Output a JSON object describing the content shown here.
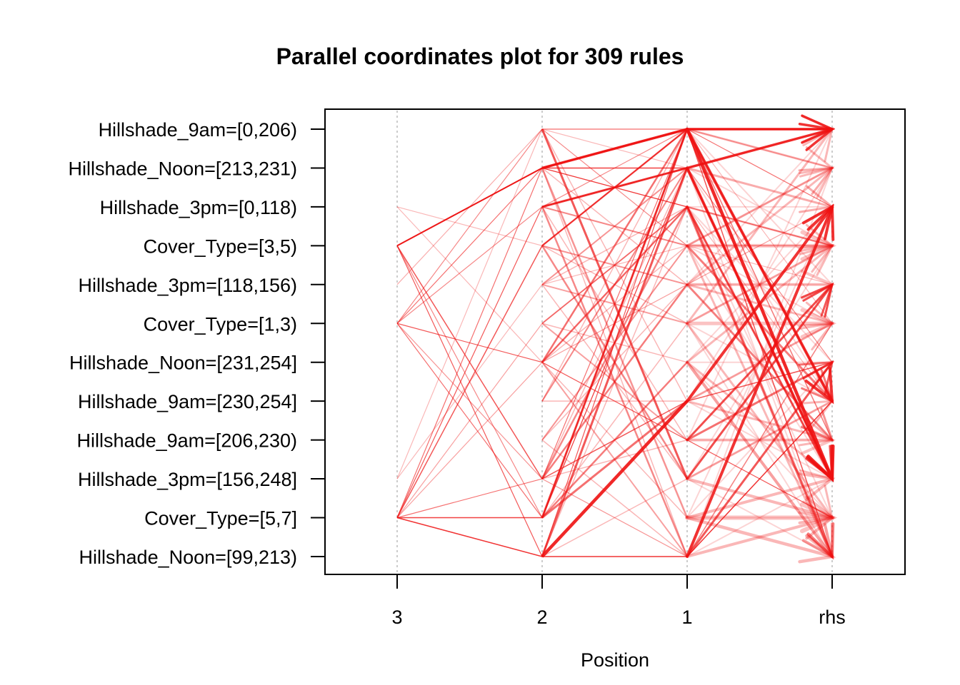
{
  "chart_data": {
    "type": "parallel-coordinates",
    "title": "Parallel coordinates plot for 309 rules",
    "xlabel": "Position",
    "x_ticks": [
      "3",
      "2",
      "1",
      "rhs"
    ],
    "y_items": [
      "Hillshade_9am=[0,206)",
      "Hillshade_Noon=[213,231)",
      "Hillshade_3pm=[0,118)",
      "Cover_Type=[3,5)",
      "Hillshade_3pm=[118,156)",
      "Cover_Type=[1,3)",
      "Hillshade_Noon=[231,254]",
      "Hillshade_9am=[230,254]",
      "Hillshade_9am=[206,230)",
      "Hillshade_3pm=[156,248]",
      "Cover_Type=[5,7]",
      "Hillshade_Noon=[99,213)"
    ],
    "rule_count": 309,
    "grid": "dotted vertical lines at each position",
    "colors": {
      "line": "#ee1111",
      "axis": "#000000",
      "grid": "#bbbbbb"
    },
    "rules": [
      {
        "path": [
          3,
          1,
          0,
          0
        ],
        "w": 2,
        "o": 0.9
      },
      {
        "path": [
          3,
          1,
          1,
          9
        ],
        "w": 1.5,
        "o": 0.8
      },
      {
        "path": [
          3,
          9,
          7,
          6
        ],
        "w": 1.5,
        "o": 0.7
      },
      {
        "path": [
          5,
          1,
          2,
          3
        ],
        "w": 1.2,
        "o": 0.6
      },
      {
        "path": [
          5,
          6,
          8,
          10
        ],
        "w": 1.2,
        "o": 0.7
      },
      {
        "path": [
          5,
          2,
          0,
          8
        ],
        "w": 1.2,
        "o": 0.5
      },
      {
        "path": [
          10,
          10,
          0,
          7
        ],
        "w": 1.5,
        "o": 0.8
      },
      {
        "path": [
          10,
          11,
          11,
          7
        ],
        "w": 1.5,
        "o": 0.85
      },
      {
        "path": [
          10,
          2,
          1,
          0
        ],
        "w": 1.2,
        "o": 0.7
      },
      {
        "path": [
          10,
          1,
          2,
          11
        ],
        "w": 1.2,
        "o": 0.6
      },
      {
        "path": [
          10,
          9,
          0,
          2
        ],
        "w": 1.2,
        "o": 0.6
      },
      {
        "path": [
          2,
          3,
          0,
          5
        ],
        "w": 1.2,
        "o": 0.3
      },
      {
        "path": [
          9,
          0,
          1,
          9
        ],
        "w": 1.2,
        "o": 0.3
      },
      {
        "path": [
          4,
          0,
          0,
          1
        ],
        "w": 1.2,
        "o": 0.35
      },
      {
        "path": [
          3,
          11,
          0,
          0
        ],
        "w": 1.2,
        "o": 0.7
      },
      {
        "path": [
          5,
          10,
          1,
          9
        ],
        "w": 1.2,
        "o": 0.6
      },
      {
        "path": [
          10,
          6,
          4,
          2
        ],
        "w": 1.2,
        "o": 0.4
      },
      {
        "path": [
          10,
          5,
          2,
          9
        ],
        "w": 1.2,
        "o": 0.4
      },
      {
        "path": [
          3,
          10,
          1,
          6
        ],
        "w": 1.2,
        "o": 0.5
      },
      {
        "path": [
          5,
          0,
          3,
          3
        ],
        "w": 1.2,
        "o": 0.5
      },
      {
        "path": [
          10,
          3,
          0,
          11
        ],
        "w": 1.5,
        "o": 0.7
      },
      {
        "path": [
          5,
          9,
          11,
          5
        ],
        "w": 1.2,
        "o": 0.45
      },
      {
        "path": [
          2,
          6,
          2,
          7
        ],
        "w": 1.2,
        "o": 0.3
      },
      {
        "path": [
          9,
          4,
          3,
          4
        ],
        "w": 1.2,
        "o": 0.3
      }
    ],
    "pairs": [
      {
        "from": 1,
        "to": 0,
        "w": 3.5,
        "o": 0.9
      },
      {
        "from": 2,
        "to": 1,
        "w": 3,
        "o": 0.8
      },
      {
        "from": 2,
        "to": 3,
        "w": 2,
        "o": 0.5
      },
      {
        "from": 3,
        "to": 0,
        "w": 2.5,
        "o": 0.6
      },
      {
        "from": 3,
        "to": 4,
        "w": 2,
        "o": 0.45
      },
      {
        "from": 4,
        "to": 1,
        "w": 2,
        "o": 0.45
      },
      {
        "from": 4,
        "to": 5,
        "w": 2,
        "o": 0.4
      },
      {
        "from": 5,
        "to": 2,
        "w": 2,
        "o": 0.45
      },
      {
        "from": 6,
        "to": 0,
        "w": 2.5,
        "o": 0.6
      },
      {
        "from": 6,
        "to": 2,
        "w": 2.5,
        "o": 0.55
      },
      {
        "from": 7,
        "to": 1,
        "w": 2,
        "o": 0.5
      },
      {
        "from": 8,
        "to": 3,
        "w": 2,
        "o": 0.45
      },
      {
        "from": 9,
        "to": 2,
        "w": 2.5,
        "o": 0.5
      },
      {
        "from": 9,
        "to": 4,
        "w": 2.5,
        "o": 0.55
      },
      {
        "from": 10,
        "to": 0,
        "w": 3,
        "o": 0.7
      },
      {
        "from": 10,
        "to": 7,
        "w": 3,
        "o": 0.6
      },
      {
        "from": 11,
        "to": 7,
        "w": 4.5,
        "o": 0.9
      },
      {
        "from": 11,
        "to": 1,
        "w": 3,
        "o": 0.7
      },
      {
        "from": 10,
        "to": 6,
        "w": 2.5,
        "o": 0.55
      },
      {
        "from": 5,
        "to": 8,
        "w": 2,
        "o": 0.4
      },
      {
        "from": 3,
        "to": 9,
        "w": 2.5,
        "o": 0.5
      },
      {
        "from": 1,
        "to": 10,
        "w": 2.5,
        "o": 0.45
      },
      {
        "from": 6,
        "to": 11,
        "w": 2,
        "o": 0.4
      },
      {
        "from": 0,
        "to": 9,
        "w": 3,
        "o": 0.7
      },
      {
        "from": 2,
        "to": 11,
        "w": 2.5,
        "o": 0.5
      }
    ],
    "rhs_arrows": [
      {
        "from": 0,
        "to": 0,
        "w": 3.5,
        "o": 0.9
      },
      {
        "from": 1,
        "to": 0,
        "w": 3.5,
        "o": 0.85
      },
      {
        "from": 0,
        "to": 7,
        "w": 4,
        "o": 0.85
      },
      {
        "from": 0,
        "to": 9,
        "w": 4.5,
        "o": 0.9
      },
      {
        "from": 1,
        "to": 9,
        "w": 4,
        "o": 0.85
      },
      {
        "from": 2,
        "to": 9,
        "w": 3,
        "o": 0.7
      },
      {
        "from": 11,
        "to": 2,
        "w": 4,
        "o": 0.85
      },
      {
        "from": 7,
        "to": 2,
        "w": 4,
        "o": 0.85
      },
      {
        "from": 9,
        "to": 4,
        "w": 3,
        "o": 0.75
      },
      {
        "from": 8,
        "to": 4,
        "w": 3,
        "o": 0.7
      },
      {
        "from": 11,
        "to": 6,
        "w": 3,
        "o": 0.7
      },
      {
        "from": 8,
        "to": 6,
        "w": 3,
        "o": 0.6
      },
      {
        "from": 3,
        "to": 7,
        "w": 3,
        "o": 0.55
      },
      {
        "from": 4,
        "to": 8,
        "w": 3,
        "o": 0.45
      },
      {
        "from": 2,
        "to": 11,
        "w": 4,
        "o": 0.55
      },
      {
        "from": 6,
        "to": 11,
        "w": 4,
        "o": 0.4
      },
      {
        "from": 10,
        "to": 11,
        "w": 4.5,
        "o": 0.3
      },
      {
        "from": 3,
        "to": 1,
        "w": 3,
        "o": 0.35
      },
      {
        "from": 5,
        "to": 3,
        "w": 3,
        "o": 0.3
      },
      {
        "from": 4,
        "to": 5,
        "w": 3,
        "o": 0.3
      },
      {
        "from": 9,
        "to": 10,
        "w": 4,
        "o": 0.3
      },
      {
        "from": 6,
        "to": 3,
        "w": 3,
        "o": 0.3
      },
      {
        "from": 7,
        "to": 5,
        "w": 3,
        "o": 0.3
      },
      {
        "from": 5,
        "to": 10,
        "w": 3,
        "o": 0.3
      },
      {
        "from": 10,
        "to": 9,
        "w": 4,
        "o": 0.3
      },
      {
        "from": 4,
        "to": 1,
        "w": 3,
        "o": 0.3
      },
      {
        "from": 3,
        "to": 3,
        "w": 5,
        "o": 0.25
      },
      {
        "from": 5,
        "to": 5,
        "w": 5,
        "o": 0.25
      },
      {
        "from": 10,
        "to": 10,
        "w": 6,
        "o": 0.25
      },
      {
        "from": 1,
        "to": 2,
        "w": 3,
        "o": 0.35
      },
      {
        "from": 8,
        "to": 8,
        "w": 4,
        "o": 0.25
      },
      {
        "from": 4,
        "to": 4,
        "w": 4,
        "o": 0.25
      },
      {
        "from": 2,
        "to": 3,
        "w": 3,
        "o": 0.3
      },
      {
        "from": 0,
        "to": 1,
        "w": 3,
        "o": 0.3
      },
      {
        "from": 9,
        "to": 7,
        "w": 3,
        "o": 0.3
      },
      {
        "from": 11,
        "to": 10,
        "w": 4,
        "o": 0.3
      },
      {
        "from": 7,
        "to": 8,
        "w": 3,
        "o": 0.3
      },
      {
        "from": 6,
        "to": 9,
        "w": 3,
        "o": 0.3
      },
      {
        "from": 5,
        "to": 0,
        "w": 3,
        "o": 0.3
      },
      {
        "from": 3,
        "to": 11,
        "w": 3,
        "o": 0.3
      }
    ]
  }
}
